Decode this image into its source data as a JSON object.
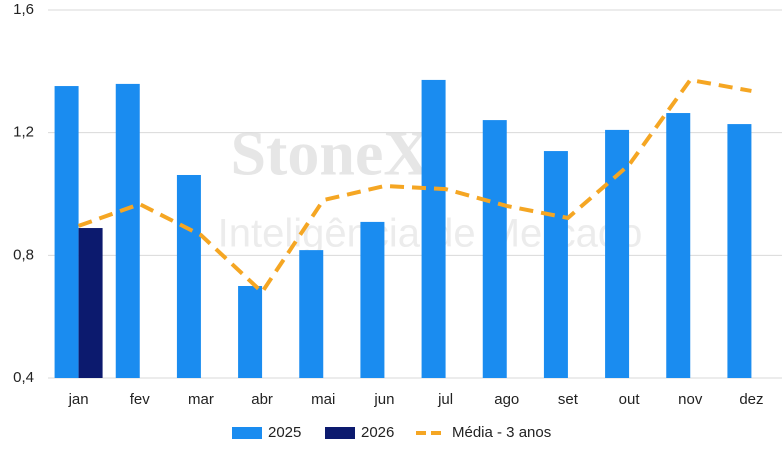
{
  "chart_data": {
    "type": "bar",
    "watermark": {
      "title": "StoneX",
      "subtitle": "Inteligência de Mercado"
    },
    "categories": [
      "jan",
      "fev",
      "mar",
      "abr",
      "mai",
      "jun",
      "jul",
      "ago",
      "set",
      "out",
      "nov",
      "dez"
    ],
    "series": [
      {
        "name": "2025",
        "type": "bar",
        "color": "#1a8cf0",
        "values": [
          1.352,
          1.359,
          1.062,
          0.7,
          0.817,
          0.909,
          1.372,
          1.241,
          1.14,
          1.209,
          1.264,
          1.228
        ]
      },
      {
        "name": "2026",
        "type": "bar",
        "color": "#0c1a6e",
        "values": [
          0.889,
          null,
          null,
          null,
          null,
          null,
          null,
          null,
          null,
          null,
          null,
          null
        ]
      },
      {
        "name": "Média - 3 anos",
        "type": "line",
        "dashed": true,
        "color": "#f5a623",
        "values": [
          0.896,
          0.967,
          0.866,
          0.68,
          0.98,
          1.026,
          1.016,
          0.961,
          0.922,
          1.095,
          1.372,
          1.336
        ]
      }
    ],
    "ylim": [
      0.4,
      1.6
    ],
    "yticks": [
      {
        "value": 0.4,
        "label": "0,4"
      },
      {
        "value": 0.8,
        "label": "0,8"
      },
      {
        "value": 1.2,
        "label": "1,2"
      },
      {
        "value": 1.6,
        "label": "1,6"
      }
    ],
    "grid": true,
    "legend": "bottom"
  }
}
